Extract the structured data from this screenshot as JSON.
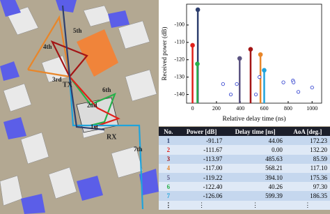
{
  "scene": {
    "labels": [
      "5th",
      "4th",
      "3rd",
      "TX",
      "6th",
      "2nd",
      "1st",
      "RX",
      "7th"
    ]
  },
  "chart_data": {
    "type": "stem",
    "y_label": "Received power (dB)",
    "x_label": "Relative delay time (ns)",
    "xlim": [
      -50,
      1080
    ],
    "ylim": [
      -145,
      -88
    ],
    "xticks": [
      0,
      200,
      400,
      600,
      800,
      1000
    ],
    "yticks": [
      -140,
      -130,
      -120,
      -110,
      -100
    ],
    "stems": [
      {
        "x": 44.06,
        "y": -91.17,
        "color": "#2e3f6e"
      },
      {
        "x": 0.0,
        "y": -111.67,
        "color": "#e0201a"
      },
      {
        "x": 485.63,
        "y": -113.97,
        "color": "#a31515"
      },
      {
        "x": 568.21,
        "y": -117.0,
        "color": "#e8862a"
      },
      {
        "x": 394.1,
        "y": -119.22,
        "color": "#5b5482"
      },
      {
        "x": 40.26,
        "y": -122.4,
        "color": "#27b04a"
      },
      {
        "x": 599.39,
        "y": -126.06,
        "color": "#1fa3dc"
      }
    ],
    "minor_points": {
      "color": "#2233cc",
      "x": [
        255,
        320,
        370,
        530,
        560,
        760,
        840,
        845,
        885,
        1000
      ],
      "y": [
        -134,
        -140,
        -134,
        -140,
        -130,
        -133,
        -132,
        -133,
        -138.5,
        -136
      ]
    }
  },
  "table": {
    "header": [
      "No.",
      "Power [dB]",
      "Delay time [ns]",
      "AoA [deg.]"
    ],
    "rows": [
      {
        "cells": [
          "1",
          "-91.17",
          "44.06",
          "172.23"
        ],
        "color": "#2e3f6e"
      },
      {
        "cells": [
          "2",
          "-111.67",
          "0.00",
          "132.20"
        ],
        "color": "#e0201a"
      },
      {
        "cells": [
          "3",
          "-113.97",
          "485.63",
          "85.59"
        ],
        "color": "#a31515"
      },
      {
        "cells": [
          "4",
          "-117.00",
          "568.21",
          "117.10"
        ],
        "color": "#e8862a"
      },
      {
        "cells": [
          "5",
          "-119.22",
          "394.10",
          "175.36"
        ],
        "color": "#5b5482"
      },
      {
        "cells": [
          "6",
          "-122.40",
          "40.26",
          "97.30"
        ],
        "color": "#27b04a"
      },
      {
        "cells": [
          "7",
          "-126.06",
          "599.39",
          "186.35"
        ],
        "color": "#1fa3dc"
      }
    ],
    "ellipsis_row": [
      "⋮",
      "⋮",
      "⋮",
      "⋮"
    ]
  }
}
